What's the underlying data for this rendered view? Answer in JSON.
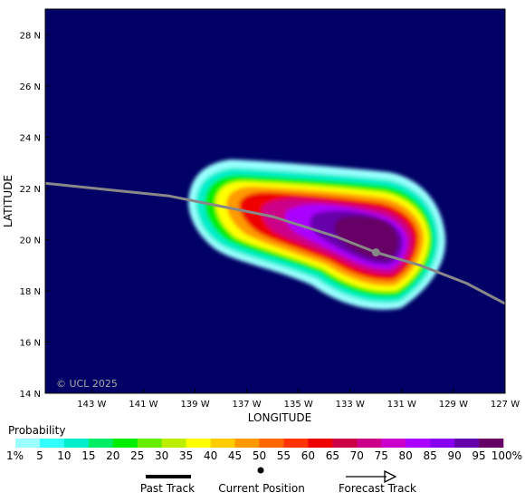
{
  "map": {
    "background_color": "#000066",
    "lat_ticks": [
      "28 N",
      "26 N",
      "24 N",
      "22 N",
      "20 N",
      "18 N",
      "16 N",
      "14 N"
    ],
    "lon_ticks": [
      "143 W",
      "141 W",
      "139 W",
      "137 W",
      "135 W",
      "133 W",
      "131 W",
      "129 W",
      "127 W"
    ],
    "lat_range": [
      14,
      29
    ],
    "lon_range": [
      -144.8,
      -127
    ],
    "xlabel": "LONGITUDE",
    "ylabel": "LATITUDE",
    "watermark": "© UCL 2025",
    "track": [
      [
        -144.8,
        22.2
      ],
      [
        -140,
        21.7
      ],
      [
        -136,
        20.9
      ],
      [
        -133.5,
        20.1
      ],
      [
        -132,
        19.5
      ],
      [
        -130.3,
        19.0
      ],
      [
        -128.5,
        18.3
      ],
      [
        -127,
        17.5
      ]
    ],
    "current_position": [
      -132,
      19.5
    ],
    "track_color": "#888888"
  },
  "legend": {
    "title": "Probability",
    "labels": [
      "1%",
      "5",
      "10",
      "15",
      "20",
      "25",
      "30",
      "35",
      "40",
      "45",
      "50",
      "55",
      "60",
      "65",
      "70",
      "75",
      "80",
      "85",
      "90",
      "95",
      "100%"
    ],
    "colors": [
      "#99ffff",
      "#33ffff",
      "#00eecc",
      "#00ee66",
      "#00ee00",
      "#66ee00",
      "#bbee00",
      "#ffff00",
      "#ffcc00",
      "#ff9900",
      "#ff6600",
      "#ff3300",
      "#ee0000",
      "#cc0044",
      "#cc0088",
      "#cc00cc",
      "#aa00ff",
      "#8800ee",
      "#6600aa",
      "#660066"
    ],
    "items": [
      {
        "label": "Past Track"
      },
      {
        "label": "Current Position"
      },
      {
        "label": "Forecast Track"
      }
    ]
  }
}
